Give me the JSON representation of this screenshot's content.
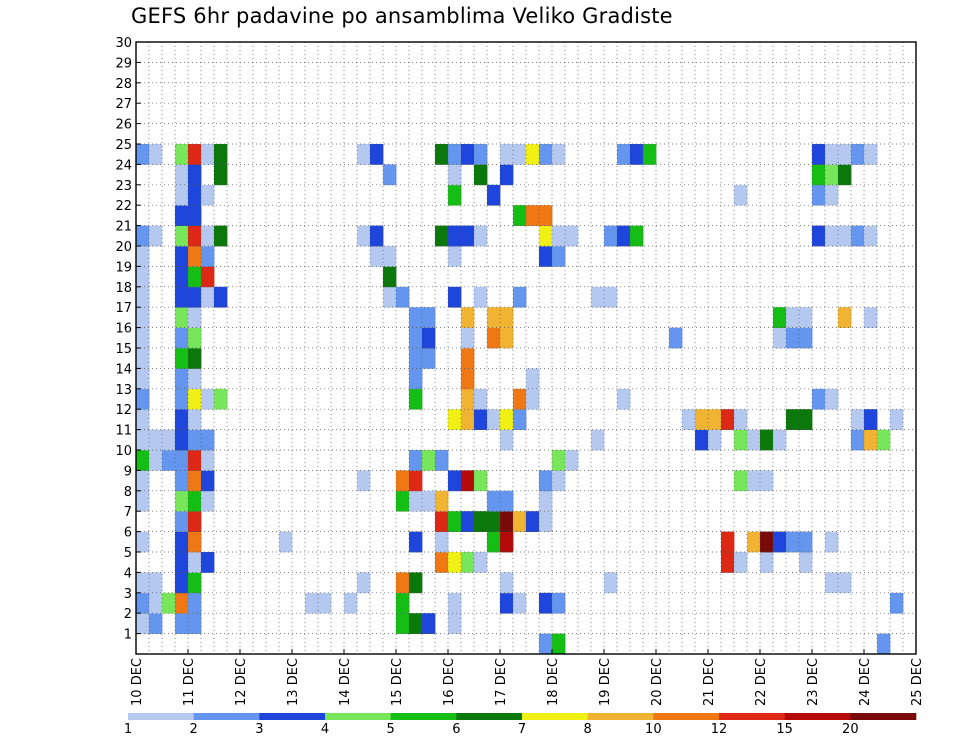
{
  "chart_data": {
    "type": "heatmap",
    "title": "GEFS 6hr padavine po ansamblima Veliko Gradiste",
    "xlabel": "",
    "ylabel": "",
    "x_tick_labels": [
      "10 DEC",
      "11 DEC",
      "12 DEC",
      "13 DEC",
      "14 DEC",
      "15 DEC",
      "16 DEC",
      "17 DEC",
      "18 DEC",
      "19 DEC",
      "20 DEC",
      "21 DEC",
      "22 DEC",
      "23 DEC",
      "24 DEC",
      "25 DEC"
    ],
    "y_tick_labels": [
      "1",
      "2",
      "3",
      "4",
      "5",
      "6",
      "7",
      "8",
      "9",
      "10",
      "11",
      "12",
      "13",
      "14",
      "15",
      "16",
      "17",
      "18",
      "19",
      "20",
      "21",
      "22",
      "23",
      "24",
      "25",
      "26",
      "27",
      "28",
      "29",
      "30"
    ],
    "xlim_steps": [
      0,
      60
    ],
    "ylim_members": [
      0,
      30
    ],
    "grid": true,
    "colorbar": {
      "labels": [
        "1",
        "2",
        "3",
        "4",
        "5",
        "6",
        "7",
        "8",
        "10",
        "12",
        "15",
        "20"
      ],
      "colors": [
        "#b4c8f0",
        "#6496f0",
        "#1e46dc",
        "#78e65a",
        "#14be14",
        "#0a780a",
        "#f0f014",
        "#f0b432",
        "#f07814",
        "#dc2814",
        "#b40a0a",
        "#780a0a"
      ]
    },
    "cells": [
      [
        31,
        0,
        "#6496f0"
      ],
      [
        32,
        0,
        "#14be14"
      ],
      [
        57,
        0,
        "#6496f0"
      ],
      [
        0,
        1,
        "#b4c8f0"
      ],
      [
        1,
        1,
        "#6496f0"
      ],
      [
        3,
        1,
        "#6496f0"
      ],
      [
        4,
        1,
        "#6496f0"
      ],
      [
        20,
        1,
        "#14be14"
      ],
      [
        21,
        1,
        "#0a780a"
      ],
      [
        22,
        1,
        "#1e46dc"
      ],
      [
        24,
        1,
        "#b4c8f0"
      ],
      [
        0,
        2,
        "#6496f0"
      ],
      [
        1,
        2,
        "#b4c8f0"
      ],
      [
        2,
        2,
        "#78e65a"
      ],
      [
        3,
        2,
        "#f07814"
      ],
      [
        4,
        2,
        "#6496f0"
      ],
      [
        13,
        2,
        "#b4c8f0"
      ],
      [
        14,
        2,
        "#b4c8f0"
      ],
      [
        16,
        2,
        "#b4c8f0"
      ],
      [
        20,
        2,
        "#14be14"
      ],
      [
        24,
        2,
        "#b4c8f0"
      ],
      [
        28,
        2,
        "#1e46dc"
      ],
      [
        29,
        2,
        "#b4c8f0"
      ],
      [
        31,
        2,
        "#1e46dc"
      ],
      [
        32,
        2,
        "#6496f0"
      ],
      [
        58,
        2,
        "#6496f0"
      ],
      [
        0,
        3,
        "#b4c8f0"
      ],
      [
        1,
        3,
        "#b4c8f0"
      ],
      [
        3,
        3,
        "#1e46dc"
      ],
      [
        4,
        3,
        "#14be14"
      ],
      [
        17,
        3,
        "#b4c8f0"
      ],
      [
        20,
        3,
        "#f07814"
      ],
      [
        21,
        3,
        "#0a780a"
      ],
      [
        28,
        3,
        "#b4c8f0"
      ],
      [
        36,
        3,
        "#b4c8f0"
      ],
      [
        53,
        3,
        "#b4c8f0"
      ],
      [
        54,
        3,
        "#b4c8f0"
      ],
      [
        3,
        4,
        "#1e46dc"
      ],
      [
        4,
        4,
        "#b4c8f0"
      ],
      [
        5,
        4,
        "#1e46dc"
      ],
      [
        23,
        4,
        "#f07814"
      ],
      [
        24,
        4,
        "#f0f014"
      ],
      [
        25,
        4,
        "#78e65a"
      ],
      [
        26,
        4,
        "#b4c8f0"
      ],
      [
        45,
        4,
        "#dc2814"
      ],
      [
        46,
        4,
        "#b4c8f0"
      ],
      [
        48,
        4,
        "#b4c8f0"
      ],
      [
        51,
        4,
        "#b4c8f0"
      ],
      [
        0,
        5,
        "#b4c8f0"
      ],
      [
        3,
        5,
        "#1e46dc"
      ],
      [
        4,
        5,
        "#f07814"
      ],
      [
        11,
        5,
        "#b4c8f0"
      ],
      [
        21,
        5,
        "#1e46dc"
      ],
      [
        23,
        5,
        "#b4c8f0"
      ],
      [
        27,
        5,
        "#14be14"
      ],
      [
        28,
        5,
        "#b40a0a"
      ],
      [
        45,
        5,
        "#dc2814"
      ],
      [
        47,
        5,
        "#f0b432"
      ],
      [
        48,
        5,
        "#780a0a"
      ],
      [
        49,
        5,
        "#1e46dc"
      ],
      [
        50,
        5,
        "#6496f0"
      ],
      [
        51,
        5,
        "#6496f0"
      ],
      [
        53,
        5,
        "#b4c8f0"
      ],
      [
        3,
        6,
        "#6496f0"
      ],
      [
        4,
        6,
        "#dc2814"
      ],
      [
        23,
        6,
        "#dc2814"
      ],
      [
        24,
        6,
        "#14be14"
      ],
      [
        25,
        6,
        "#1e46dc"
      ],
      [
        26,
        6,
        "#0a780a"
      ],
      [
        27,
        6,
        "#0a780a"
      ],
      [
        28,
        6,
        "#780a0a"
      ],
      [
        29,
        6,
        "#f0b432"
      ],
      [
        30,
        6,
        "#1e46dc"
      ],
      [
        31,
        6,
        "#b4c8f0"
      ],
      [
        0,
        7,
        "#b4c8f0"
      ],
      [
        3,
        7,
        "#78e65a"
      ],
      [
        4,
        7,
        "#14be14"
      ],
      [
        5,
        7,
        "#b4c8f0"
      ],
      [
        20,
        7,
        "#14be14"
      ],
      [
        21,
        7,
        "#b4c8f0"
      ],
      [
        22,
        7,
        "#b4c8f0"
      ],
      [
        23,
        7,
        "#f0b432"
      ],
      [
        27,
        7,
        "#6496f0"
      ],
      [
        28,
        7,
        "#6496f0"
      ],
      [
        31,
        7,
        "#b4c8f0"
      ],
      [
        0,
        8,
        "#b4c8f0"
      ],
      [
        3,
        8,
        "#6496f0"
      ],
      [
        4,
        8,
        "#f07814"
      ],
      [
        5,
        8,
        "#1e46dc"
      ],
      [
        17,
        8,
        "#b4c8f0"
      ],
      [
        20,
        8,
        "#f07814"
      ],
      [
        21,
        8,
        "#dc2814"
      ],
      [
        24,
        8,
        "#1e46dc"
      ],
      [
        25,
        8,
        "#b40a0a"
      ],
      [
        26,
        8,
        "#78e65a"
      ],
      [
        31,
        8,
        "#6496f0"
      ],
      [
        32,
        8,
        "#b4c8f0"
      ],
      [
        46,
        8,
        "#78e65a"
      ],
      [
        47,
        8,
        "#b4c8f0"
      ],
      [
        48,
        8,
        "#b4c8f0"
      ],
      [
        0,
        9,
        "#14be14"
      ],
      [
        1,
        9,
        "#b4c8f0"
      ],
      [
        2,
        9,
        "#6496f0"
      ],
      [
        3,
        9,
        "#6496f0"
      ],
      [
        4,
        9,
        "#dc2814"
      ],
      [
        5,
        9,
        "#b4c8f0"
      ],
      [
        21,
        9,
        "#6496f0"
      ],
      [
        22,
        9,
        "#78e65a"
      ],
      [
        23,
        9,
        "#6496f0"
      ],
      [
        32,
        9,
        "#78e65a"
      ],
      [
        33,
        9,
        "#b4c8f0"
      ],
      [
        0,
        10,
        "#b4c8f0"
      ],
      [
        1,
        10,
        "#b4c8f0"
      ],
      [
        2,
        10,
        "#b4c8f0"
      ],
      [
        3,
        10,
        "#1e46dc"
      ],
      [
        4,
        10,
        "#6496f0"
      ],
      [
        5,
        10,
        "#6496f0"
      ],
      [
        28,
        10,
        "#b4c8f0"
      ],
      [
        35,
        10,
        "#b4c8f0"
      ],
      [
        43,
        10,
        "#1e46dc"
      ],
      [
        44,
        10,
        "#b4c8f0"
      ],
      [
        46,
        10,
        "#78e65a"
      ],
      [
        47,
        10,
        "#b4c8f0"
      ],
      [
        48,
        10,
        "#0a780a"
      ],
      [
        49,
        10,
        "#b4c8f0"
      ],
      [
        55,
        10,
        "#6496f0"
      ],
      [
        56,
        10,
        "#f0b432"
      ],
      [
        57,
        10,
        "#78e65a"
      ],
      [
        0,
        11,
        "#b4c8f0"
      ],
      [
        3,
        11,
        "#1e46dc"
      ],
      [
        4,
        11,
        "#b4c8f0"
      ],
      [
        24,
        11,
        "#f0f014"
      ],
      [
        25,
        11,
        "#f0b432"
      ],
      [
        26,
        11,
        "#1e46dc"
      ],
      [
        27,
        11,
        "#b4c8f0"
      ],
      [
        28,
        11,
        "#f0f014"
      ],
      [
        29,
        11,
        "#6496f0"
      ],
      [
        42,
        11,
        "#b4c8f0"
      ],
      [
        43,
        11,
        "#f0b432"
      ],
      [
        44,
        11,
        "#f0b432"
      ],
      [
        45,
        11,
        "#dc2814"
      ],
      [
        46,
        11,
        "#b4c8f0"
      ],
      [
        50,
        11,
        "#0a780a"
      ],
      [
        51,
        11,
        "#0a780a"
      ],
      [
        55,
        11,
        "#b4c8f0"
      ],
      [
        56,
        11,
        "#1e46dc"
      ],
      [
        58,
        11,
        "#b4c8f0"
      ],
      [
        0,
        12,
        "#6496f0"
      ],
      [
        3,
        12,
        "#6496f0"
      ],
      [
        4,
        12,
        "#f0f014"
      ],
      [
        5,
        12,
        "#b4c8f0"
      ],
      [
        6,
        12,
        "#78e65a"
      ],
      [
        21,
        12,
        "#14be14"
      ],
      [
        25,
        12,
        "#f0b432"
      ],
      [
        26,
        12,
        "#b4c8f0"
      ],
      [
        29,
        12,
        "#f07814"
      ],
      [
        30,
        12,
        "#b4c8f0"
      ],
      [
        37,
        12,
        "#b4c8f0"
      ],
      [
        52,
        12,
        "#6496f0"
      ],
      [
        53,
        12,
        "#b4c8f0"
      ],
      [
        0,
        13,
        "#b4c8f0"
      ],
      [
        3,
        13,
        "#6496f0"
      ],
      [
        4,
        13,
        "#b4c8f0"
      ],
      [
        21,
        13,
        "#6496f0"
      ],
      [
        25,
        13,
        "#f07814"
      ],
      [
        30,
        13,
        "#b4c8f0"
      ],
      [
        0,
        14,
        "#b4c8f0"
      ],
      [
        3,
        14,
        "#14be14"
      ],
      [
        4,
        14,
        "#0a780a"
      ],
      [
        21,
        14,
        "#6496f0"
      ],
      [
        22,
        14,
        "#6496f0"
      ],
      [
        25,
        14,
        "#f07814"
      ],
      [
        0,
        15,
        "#b4c8f0"
      ],
      [
        3,
        15,
        "#6496f0"
      ],
      [
        4,
        15,
        "#78e65a"
      ],
      [
        21,
        15,
        "#6496f0"
      ],
      [
        22,
        15,
        "#1e46dc"
      ],
      [
        25,
        15,
        "#b4c8f0"
      ],
      [
        27,
        15,
        "#f07814"
      ],
      [
        28,
        15,
        "#f0b432"
      ],
      [
        41,
        15,
        "#6496f0"
      ],
      [
        49,
        15,
        "#b4c8f0"
      ],
      [
        50,
        15,
        "#6496f0"
      ],
      [
        51,
        15,
        "#6496f0"
      ],
      [
        0,
        16,
        "#b4c8f0"
      ],
      [
        3,
        16,
        "#78e65a"
      ],
      [
        4,
        16,
        "#b4c8f0"
      ],
      [
        21,
        16,
        "#6496f0"
      ],
      [
        22,
        16,
        "#6496f0"
      ],
      [
        25,
        16,
        "#f0b432"
      ],
      [
        27,
        16,
        "#f0b432"
      ],
      [
        28,
        16,
        "#f0b432"
      ],
      [
        49,
        16,
        "#14be14"
      ],
      [
        50,
        16,
        "#b4c8f0"
      ],
      [
        51,
        16,
        "#b4c8f0"
      ],
      [
        54,
        16,
        "#f0b432"
      ],
      [
        56,
        16,
        "#b4c8f0"
      ],
      [
        0,
        17,
        "#b4c8f0"
      ],
      [
        3,
        17,
        "#1e46dc"
      ],
      [
        4,
        17,
        "#1e46dc"
      ],
      [
        5,
        17,
        "#b4c8f0"
      ],
      [
        6,
        17,
        "#1e46dc"
      ],
      [
        19,
        17,
        "#b4c8f0"
      ],
      [
        20,
        17,
        "#6496f0"
      ],
      [
        24,
        17,
        "#1e46dc"
      ],
      [
        26,
        17,
        "#b4c8f0"
      ],
      [
        29,
        17,
        "#6496f0"
      ],
      [
        35,
        17,
        "#b4c8f0"
      ],
      [
        36,
        17,
        "#b4c8f0"
      ],
      [
        0,
        18,
        "#b4c8f0"
      ],
      [
        3,
        18,
        "#1e46dc"
      ],
      [
        4,
        18,
        "#14be14"
      ],
      [
        5,
        18,
        "#dc2814"
      ],
      [
        19,
        18,
        "#0a780a"
      ],
      [
        0,
        19,
        "#b4c8f0"
      ],
      [
        3,
        19,
        "#1e46dc"
      ],
      [
        4,
        19,
        "#f07814"
      ],
      [
        5,
        19,
        "#6496f0"
      ],
      [
        18,
        19,
        "#b4c8f0"
      ],
      [
        19,
        19,
        "#b4c8f0"
      ],
      [
        24,
        19,
        "#b4c8f0"
      ],
      [
        31,
        19,
        "#1e46dc"
      ],
      [
        32,
        19,
        "#6496f0"
      ],
      [
        0,
        20,
        "#6496f0"
      ],
      [
        1,
        20,
        "#b4c8f0"
      ],
      [
        3,
        20,
        "#78e65a"
      ],
      [
        4,
        20,
        "#dc2814"
      ],
      [
        5,
        20,
        "#b4c8f0"
      ],
      [
        6,
        20,
        "#0a780a"
      ],
      [
        17,
        20,
        "#b4c8f0"
      ],
      [
        18,
        20,
        "#1e46dc"
      ],
      [
        23,
        20,
        "#0a780a"
      ],
      [
        24,
        20,
        "#1e46dc"
      ],
      [
        25,
        20,
        "#1e46dc"
      ],
      [
        26,
        20,
        "#b4c8f0"
      ],
      [
        31,
        20,
        "#f0f014"
      ],
      [
        32,
        20,
        "#b4c8f0"
      ],
      [
        33,
        20,
        "#b4c8f0"
      ],
      [
        36,
        20,
        "#6496f0"
      ],
      [
        37,
        20,
        "#1e46dc"
      ],
      [
        38,
        20,
        "#14be14"
      ],
      [
        52,
        20,
        "#1e46dc"
      ],
      [
        53,
        20,
        "#b4c8f0"
      ],
      [
        54,
        20,
        "#b4c8f0"
      ],
      [
        55,
        20,
        "#6496f0"
      ],
      [
        56,
        20,
        "#b4c8f0"
      ],
      [
        3,
        21,
        "#1e46dc"
      ],
      [
        4,
        21,
        "#1e46dc"
      ],
      [
        29,
        21,
        "#14be14"
      ],
      [
        30,
        21,
        "#f07814"
      ],
      [
        31,
        21,
        "#f07814"
      ],
      [
        3,
        22,
        "#b4c8f0"
      ],
      [
        4,
        22,
        "#1e46dc"
      ],
      [
        5,
        22,
        "#b4c8f0"
      ],
      [
        24,
        22,
        "#14be14"
      ],
      [
        27,
        22,
        "#1e46dc"
      ],
      [
        46,
        22,
        "#b4c8f0"
      ],
      [
        52,
        22,
        "#6496f0"
      ],
      [
        53,
        22,
        "#b4c8f0"
      ],
      [
        3,
        23,
        "#b4c8f0"
      ],
      [
        4,
        23,
        "#1e46dc"
      ],
      [
        6,
        23,
        "#0a780a"
      ],
      [
        19,
        23,
        "#6496f0"
      ],
      [
        24,
        23,
        "#b4c8f0"
      ],
      [
        26,
        23,
        "#0a780a"
      ],
      [
        28,
        23,
        "#1e46dc"
      ],
      [
        52,
        23,
        "#14be14"
      ],
      [
        53,
        23,
        "#78e65a"
      ],
      [
        54,
        23,
        "#0a780a"
      ],
      [
        0,
        24,
        "#6496f0"
      ],
      [
        1,
        24,
        "#b4c8f0"
      ],
      [
        3,
        24,
        "#78e65a"
      ],
      [
        4,
        24,
        "#dc2814"
      ],
      [
        5,
        24,
        "#b4c8f0"
      ],
      [
        6,
        24,
        "#0a780a"
      ],
      [
        17,
        24,
        "#b4c8f0"
      ],
      [
        18,
        24,
        "#1e46dc"
      ],
      [
        23,
        24,
        "#0a780a"
      ],
      [
        24,
        24,
        "#6496f0"
      ],
      [
        25,
        24,
        "#1e46dc"
      ],
      [
        26,
        24,
        "#6496f0"
      ],
      [
        28,
        24,
        "#b4c8f0"
      ],
      [
        29,
        24,
        "#b4c8f0"
      ],
      [
        30,
        24,
        "#f0f014"
      ],
      [
        31,
        24,
        "#6496f0"
      ],
      [
        32,
        24,
        "#b4c8f0"
      ],
      [
        37,
        24,
        "#6496f0"
      ],
      [
        38,
        24,
        "#1e46dc"
      ],
      [
        39,
        24,
        "#14be14"
      ],
      [
        52,
        24,
        "#1e46dc"
      ],
      [
        53,
        24,
        "#b4c8f0"
      ],
      [
        54,
        24,
        "#b4c8f0"
      ],
      [
        55,
        24,
        "#6496f0"
      ],
      [
        56,
        24,
        "#b4c8f0"
      ]
    ]
  }
}
